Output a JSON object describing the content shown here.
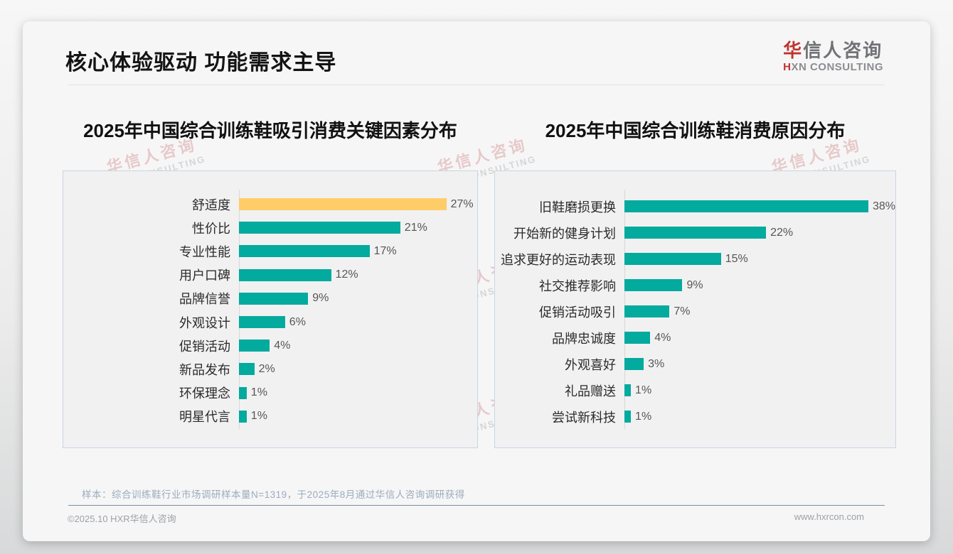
{
  "slide": {
    "title": "核心体验驱动 功能需求主导",
    "logo": {
      "name_accent": "华",
      "name_rest": "信人咨询",
      "tagline_accent": "H",
      "tagline_rest": "XN CONSULTING"
    },
    "watermark": {
      "line1": "华信人咨询",
      "line2": "HXN CONSULTING"
    },
    "sample_note": "样本：综合训练鞋行业市场调研样本量N=1319，于2025年8月通过华信人咨询调研获得",
    "footer": {
      "copyright": "©2025.10 HXR华信人咨询",
      "website": "www.hxrcon.com"
    }
  },
  "colors": {
    "teal": "#03aa9e",
    "highlight_yellow": "#ffcd68",
    "logo_red": "#bf3430"
  },
  "chart_data": [
    {
      "type": "bar",
      "orientation": "horizontal",
      "title": "2025年中国综合训练鞋吸引消费关键因素分布",
      "unit": "%",
      "categories": [
        "舒适度",
        "性价比",
        "专业性能",
        "用户口碑",
        "品牌信誉",
        "外观设计",
        "促销活动",
        "新品发布",
        "环保理念",
        "明星代言"
      ],
      "values": [
        27,
        21,
        17,
        12,
        9,
        6,
        4,
        2,
        1,
        1
      ],
      "value_labels": [
        "27%",
        "21%",
        "17%",
        "12%",
        "9%",
        "6%",
        "4%",
        "2%",
        "1%",
        "1%"
      ],
      "highlight_index": 0,
      "xlim": [
        0,
        28
      ],
      "grid": false,
      "legend": false
    },
    {
      "type": "bar",
      "orientation": "horizontal",
      "title": "2025年中国综合训练鞋消费原因分布",
      "unit": "%",
      "categories": [
        "旧鞋磨损更换",
        "开始新的健身计划",
        "追求更好的运动表现",
        "社交推荐影响",
        "促销活动吸引",
        "品牌忠诚度",
        "外观喜好",
        "礼品赠送",
        "尝试新科技"
      ],
      "values": [
        38,
        22,
        15,
        9,
        7,
        4,
        3,
        1,
        1
      ],
      "value_labels": [
        "38%",
        "22%",
        "15%",
        "9%",
        "7%",
        "4%",
        "3%",
        "1%",
        "1%"
      ],
      "highlight_index": -1,
      "xlim": [
        0,
        40
      ],
      "grid": false,
      "legend": false
    }
  ]
}
